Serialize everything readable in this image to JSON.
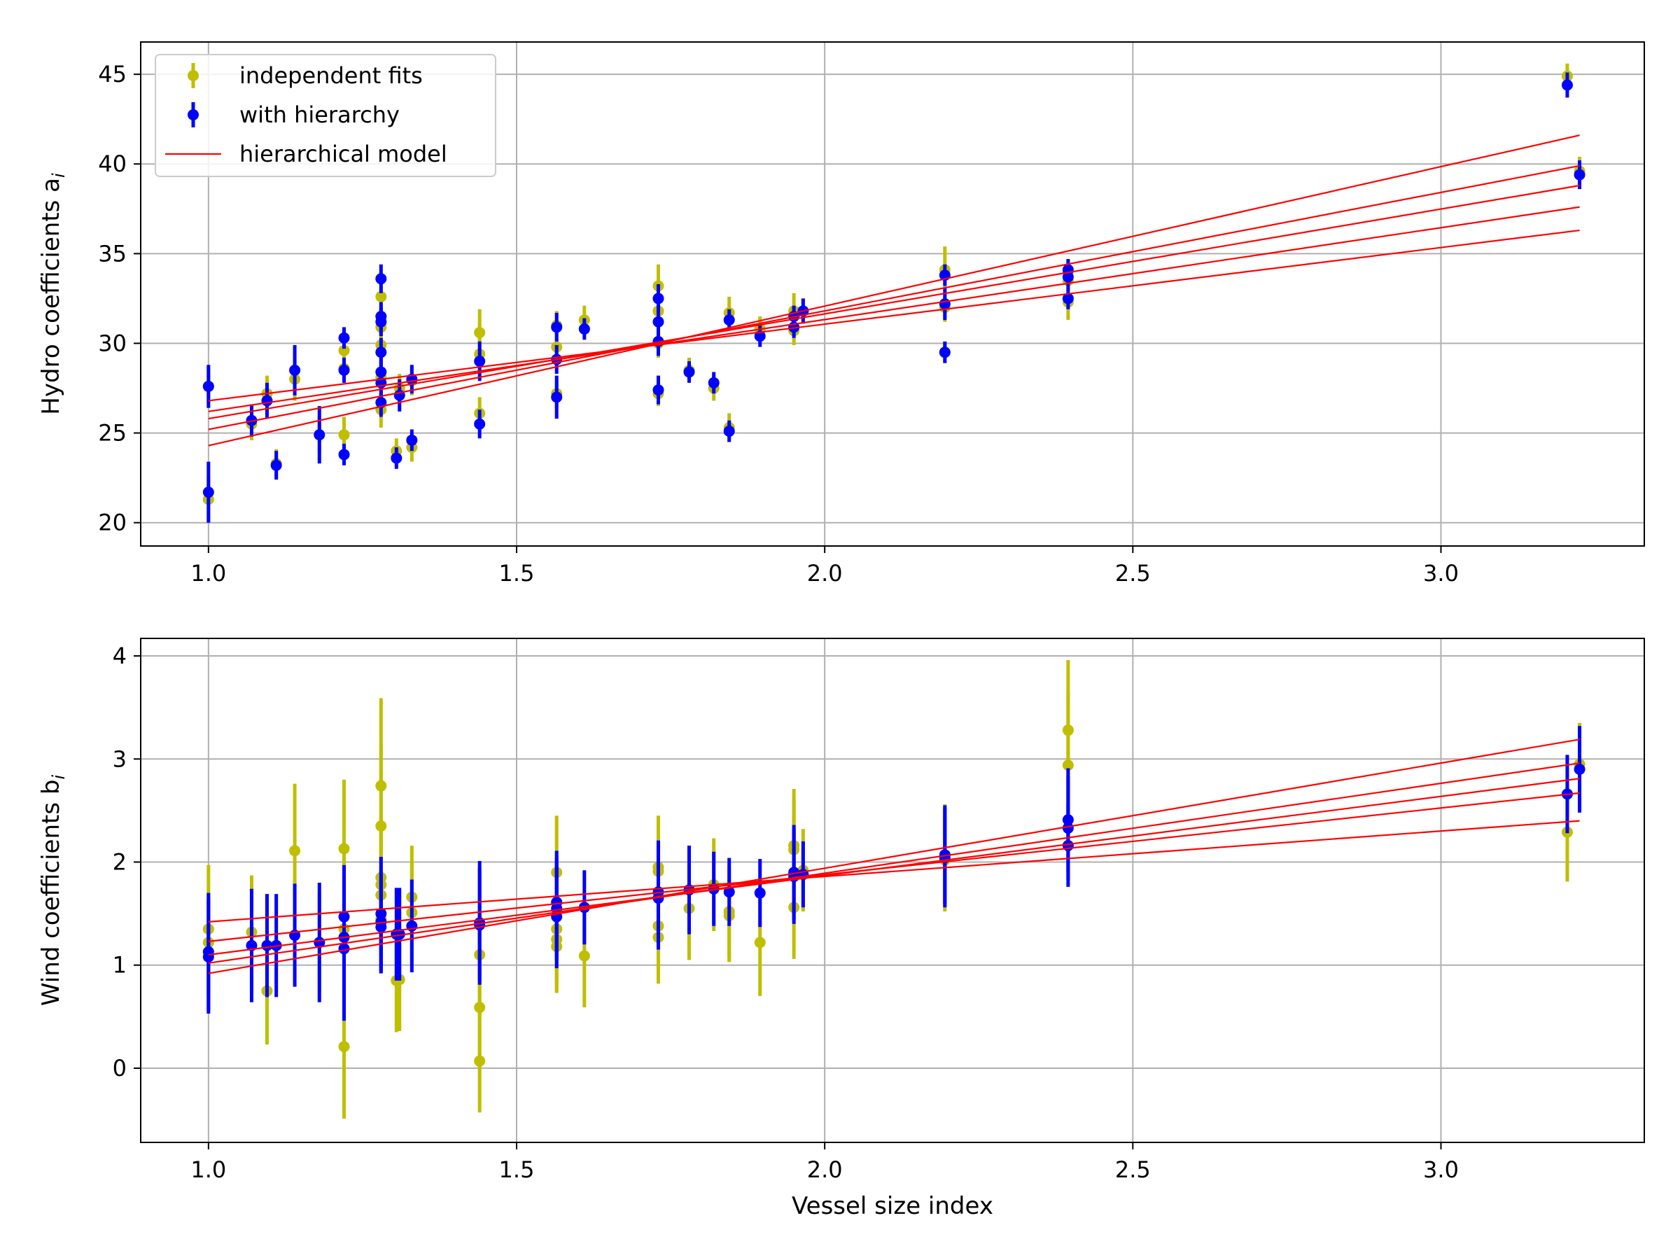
{
  "chart_data": [
    {
      "type": "scatter",
      "panel": "top",
      "ylabel": "Hydro coefficients a",
      "ylabel_subscript": "i",
      "xlabel": "",
      "xlim": [
        0.89,
        3.33
      ],
      "ylim": [
        18.7,
        46.8
      ],
      "x_ticks": [
        1.0,
        1.5,
        2.0,
        2.5,
        3.0
      ],
      "x_tick_labels": [
        "1.0",
        "1.5",
        "2.0",
        "2.5",
        "3.0"
      ],
      "y_ticks": [
        20,
        25,
        30,
        35,
        40,
        45
      ],
      "y_tick_labels": [
        "20",
        "25",
        "30",
        "35",
        "40",
        "45"
      ],
      "grid": true,
      "legend": {
        "position": "top-left",
        "entries": [
          {
            "key": "indep",
            "label": "independent fits",
            "color": "#bfbf00"
          },
          {
            "key": "hier",
            "label": "with hierarchy",
            "color": "#0000ff"
          },
          {
            "key": "model",
            "label": "hierarchical model",
            "color": "#ff0000"
          }
        ]
      },
      "series": [
        {
          "name": "independent fits",
          "color": "#bfbf00",
          "points": [
            [
              1.0,
              21.3,
              1.2
            ],
            [
              1.0,
              27.6,
              1.0
            ],
            [
              1.07,
              25.5,
              0.9
            ],
            [
              1.095,
              27.2,
              1.0
            ],
            [
              1.11,
              23.3,
              0.8
            ],
            [
              1.14,
              28.0,
              1.2
            ],
            [
              1.18,
              24.9,
              1.0
            ],
            [
              1.22,
              29.6,
              0.8
            ],
            [
              1.22,
              24.9,
              1.0
            ],
            [
              1.22,
              28.6,
              0.8
            ],
            [
              1.28,
              32.6,
              0.8
            ],
            [
              1.28,
              30.9,
              0.8
            ],
            [
              1.28,
              29.9,
              0.8
            ],
            [
              1.28,
              26.3,
              1.0
            ],
            [
              1.28,
              28.1,
              0.8
            ],
            [
              1.305,
              24.0,
              0.7
            ],
            [
              1.31,
              27.5,
              0.8
            ],
            [
              1.33,
              24.2,
              0.8
            ],
            [
              1.33,
              27.9,
              0.8
            ],
            [
              1.44,
              30.6,
              1.3
            ],
            [
              1.44,
              29.4,
              0.9
            ],
            [
              1.44,
              26.1,
              0.9
            ],
            [
              1.565,
              31.0,
              0.8
            ],
            [
              1.565,
              29.8,
              0.7
            ],
            [
              1.565,
              27.2,
              0.8
            ],
            [
              1.61,
              31.3,
              0.8
            ],
            [
              1.73,
              33.2,
              1.2
            ],
            [
              1.73,
              31.8,
              0.9
            ],
            [
              1.73,
              30.0,
              0.8
            ],
            [
              1.73,
              27.2,
              0.7
            ],
            [
              1.78,
              28.5,
              0.7
            ],
            [
              1.82,
              27.5,
              0.7
            ],
            [
              1.845,
              31.7,
              0.9
            ],
            [
              1.845,
              25.3,
              0.8
            ],
            [
              1.895,
              30.8,
              0.7
            ],
            [
              1.95,
              31.8,
              1.0
            ],
            [
              1.95,
              30.7,
              0.8
            ],
            [
              1.965,
              31.8,
              0.7
            ],
            [
              2.195,
              34.1,
              1.3
            ],
            [
              2.195,
              32.0,
              0.8
            ],
            [
              2.195,
              29.5,
              0.6
            ],
            [
              2.395,
              34.0,
              0.6
            ],
            [
              2.395,
              33.5,
              0.6
            ],
            [
              2.395,
              32.3,
              1.0
            ],
            [
              3.205,
              44.9,
              0.7
            ],
            [
              3.225,
              39.6,
              0.8
            ]
          ]
        },
        {
          "name": "with hierarchy",
          "color": "#0000ff",
          "points": [
            [
              1.0,
              21.7,
              1.7
            ],
            [
              1.0,
              27.6,
              1.2
            ],
            [
              1.07,
              25.7,
              0.9
            ],
            [
              1.095,
              26.8,
              1.0
            ],
            [
              1.11,
              23.2,
              0.8
            ],
            [
              1.14,
              28.5,
              1.4
            ],
            [
              1.18,
              24.9,
              1.6
            ],
            [
              1.22,
              30.3,
              0.6
            ],
            [
              1.22,
              23.8,
              0.6
            ],
            [
              1.22,
              28.5,
              0.7
            ],
            [
              1.28,
              33.6,
              0.8
            ],
            [
              1.28,
              31.5,
              0.8
            ],
            [
              1.28,
              31.2,
              0.8
            ],
            [
              1.28,
              29.5,
              0.8
            ],
            [
              1.28,
              28.4,
              0.8
            ],
            [
              1.28,
              27.8,
              0.8
            ],
            [
              1.28,
              26.7,
              0.8
            ],
            [
              1.305,
              23.6,
              0.6
            ],
            [
              1.31,
              27.1,
              0.9
            ],
            [
              1.33,
              24.6,
              0.6
            ],
            [
              1.33,
              28.0,
              0.8
            ],
            [
              1.44,
              29.0,
              1.1
            ],
            [
              1.44,
              25.5,
              0.8
            ],
            [
              1.565,
              30.9,
              0.8
            ],
            [
              1.565,
              29.1,
              0.8
            ],
            [
              1.565,
              27.0,
              1.2
            ],
            [
              1.61,
              30.8,
              0.6
            ],
            [
              1.73,
              32.5,
              0.8
            ],
            [
              1.73,
              31.2,
              1.1
            ],
            [
              1.73,
              30.1,
              0.8
            ],
            [
              1.73,
              27.4,
              0.8
            ],
            [
              1.78,
              28.4,
              0.6
            ],
            [
              1.82,
              27.8,
              0.6
            ],
            [
              1.845,
              31.3,
              0.6
            ],
            [
              1.845,
              25.1,
              0.6
            ],
            [
              1.895,
              30.4,
              0.6
            ],
            [
              1.95,
              31.5,
              0.6
            ],
            [
              1.95,
              30.9,
              0.6
            ],
            [
              1.965,
              31.8,
              0.7
            ],
            [
              2.195,
              33.8,
              0.6
            ],
            [
              2.195,
              32.2,
              0.9
            ],
            [
              2.195,
              29.5,
              0.6
            ],
            [
              2.395,
              34.1,
              0.6
            ],
            [
              2.395,
              33.7,
              0.6
            ],
            [
              2.395,
              32.5,
              0.6
            ],
            [
              3.205,
              44.4,
              0.7
            ],
            [
              3.225,
              39.4,
              0.8
            ]
          ]
        }
      ],
      "model_lines": {
        "name": "hierarchical model",
        "color": "#ff0000",
        "x_range": [
          1.0,
          3.225
        ],
        "lines": [
          [
            24.3,
            41.6
          ],
          [
            25.2,
            39.9
          ],
          [
            25.8,
            38.8
          ],
          [
            26.2,
            37.6
          ],
          [
            26.8,
            36.3
          ]
        ]
      }
    },
    {
      "type": "scatter",
      "panel": "bottom",
      "ylabel": "Wind coefficients b",
      "ylabel_subscript": "i",
      "xlabel": "Vessel size index",
      "xlim": [
        0.89,
        3.33
      ],
      "ylim": [
        -0.72,
        4.17
      ],
      "x_ticks": [
        1.0,
        1.5,
        2.0,
        2.5,
        3.0
      ],
      "x_tick_labels": [
        "1.0",
        "1.5",
        "2.0",
        "2.5",
        "3.0"
      ],
      "y_ticks": [
        0,
        1,
        2,
        3,
        4
      ],
      "y_tick_labels": [
        "0",
        "1",
        "2",
        "3",
        "4"
      ],
      "grid": true,
      "series": [
        {
          "name": "independent fits",
          "color": "#bfbf00",
          "points": [
            [
              1.0,
              1.35,
              0.62
            ],
            [
              1.0,
              1.22,
              0.5
            ],
            [
              1.07,
              1.32,
              0.55
            ],
            [
              1.095,
              0.75,
              0.52
            ],
            [
              1.14,
              2.11,
              0.65
            ],
            [
              1.18,
              1.22,
              0.48
            ],
            [
              1.22,
              0.21,
              0.7
            ],
            [
              1.22,
              2.13,
              0.67
            ],
            [
              1.22,
              1.35,
              0.5
            ],
            [
              1.28,
              2.74,
              0.85
            ],
            [
              1.28,
              2.35,
              0.8
            ],
            [
              1.28,
              1.85,
              0.6
            ],
            [
              1.28,
              1.78,
              0.55
            ],
            [
              1.28,
              1.68,
              0.55
            ],
            [
              1.28,
              1.45,
              0.5
            ],
            [
              1.305,
              0.85,
              0.5
            ],
            [
              1.31,
              0.86,
              0.5
            ],
            [
              1.33,
              1.66,
              0.5
            ],
            [
              1.33,
              1.51,
              0.5
            ],
            [
              1.44,
              1.1,
              0.5
            ],
            [
              1.44,
              0.59,
              0.6
            ],
            [
              1.44,
              0.07,
              0.5
            ],
            [
              1.565,
              1.9,
              0.55
            ],
            [
              1.565,
              1.35,
              0.5
            ],
            [
              1.565,
              1.25,
              0.5
            ],
            [
              1.565,
              1.18,
              0.45
            ],
            [
              1.61,
              1.09,
              0.5
            ],
            [
              1.73,
              1.95,
              0.5
            ],
            [
              1.73,
              1.91,
              0.5
            ],
            [
              1.73,
              1.38,
              0.5
            ],
            [
              1.73,
              1.27,
              0.45
            ],
            [
              1.78,
              1.55,
              0.5
            ],
            [
              1.82,
              1.78,
              0.45
            ],
            [
              1.845,
              1.52,
              0.45
            ],
            [
              1.845,
              1.48,
              0.45
            ],
            [
              1.895,
              1.22,
              0.52
            ],
            [
              1.95,
              2.16,
              0.55
            ],
            [
              1.95,
              2.12,
              0.5
            ],
            [
              1.95,
              1.56,
              0.5
            ],
            [
              1.965,
              1.92,
              0.4
            ],
            [
              2.195,
              2.06,
              0.5
            ],
            [
              2.195,
              2.02,
              0.5
            ],
            [
              2.395,
              3.28,
              0.68
            ],
            [
              2.395,
              2.94,
              0.72
            ],
            [
              3.205,
              2.29,
              0.48
            ],
            [
              3.225,
              2.95,
              0.4
            ]
          ]
        },
        {
          "name": "with hierarchy",
          "color": "#0000ff",
          "points": [
            [
              1.0,
              1.13,
              0.57
            ],
            [
              1.0,
              1.08,
              0.55
            ],
            [
              1.07,
              1.19,
              0.55
            ],
            [
              1.095,
              1.19,
              0.5
            ],
            [
              1.11,
              1.19,
              0.5
            ],
            [
              1.14,
              1.29,
              0.5
            ],
            [
              1.18,
              1.22,
              0.58
            ],
            [
              1.22,
              1.47,
              0.5
            ],
            [
              1.22,
              1.27,
              0.55
            ],
            [
              1.22,
              1.16,
              0.7
            ],
            [
              1.28,
              1.5,
              0.55
            ],
            [
              1.28,
              1.42,
              0.5
            ],
            [
              1.28,
              1.37,
              0.45
            ],
            [
              1.305,
              1.3,
              0.45
            ],
            [
              1.31,
              1.3,
              0.45
            ],
            [
              1.33,
              1.38,
              0.45
            ],
            [
              1.44,
              1.41,
              0.6
            ],
            [
              1.44,
              1.39,
              0.55
            ],
            [
              1.565,
              1.61,
              0.5
            ],
            [
              1.565,
              1.55,
              0.5
            ],
            [
              1.565,
              1.47,
              0.5
            ],
            [
              1.61,
              1.56,
              0.36
            ],
            [
              1.73,
              1.71,
              0.5
            ],
            [
              1.73,
              1.65,
              0.5
            ],
            [
              1.78,
              1.73,
              0.43
            ],
            [
              1.82,
              1.74,
              0.36
            ],
            [
              1.845,
              1.71,
              0.33
            ],
            [
              1.895,
              1.7,
              0.33
            ],
            [
              1.95,
              1.9,
              0.46
            ],
            [
              1.95,
              1.86,
              0.46
            ],
            [
              1.965,
              1.88,
              0.32
            ],
            [
              2.195,
              2.07,
              0.48
            ],
            [
              2.195,
              2.04,
              0.48
            ],
            [
              2.395,
              2.41,
              0.5
            ],
            [
              2.395,
              2.33,
              0.5
            ],
            [
              2.395,
              2.16,
              0.4
            ],
            [
              3.205,
              2.66,
              0.38
            ],
            [
              3.225,
              2.9,
              0.42
            ]
          ]
        }
      ],
      "model_lines": {
        "name": "hierarchical model",
        "color": "#ff0000",
        "x_range": [
          1.0,
          3.225
        ],
        "lines": [
          [
            0.92,
            3.19
          ],
          [
            1.02,
            2.96
          ],
          [
            1.1,
            2.81
          ],
          [
            1.23,
            2.67
          ],
          [
            1.42,
            2.4
          ]
        ]
      }
    }
  ]
}
